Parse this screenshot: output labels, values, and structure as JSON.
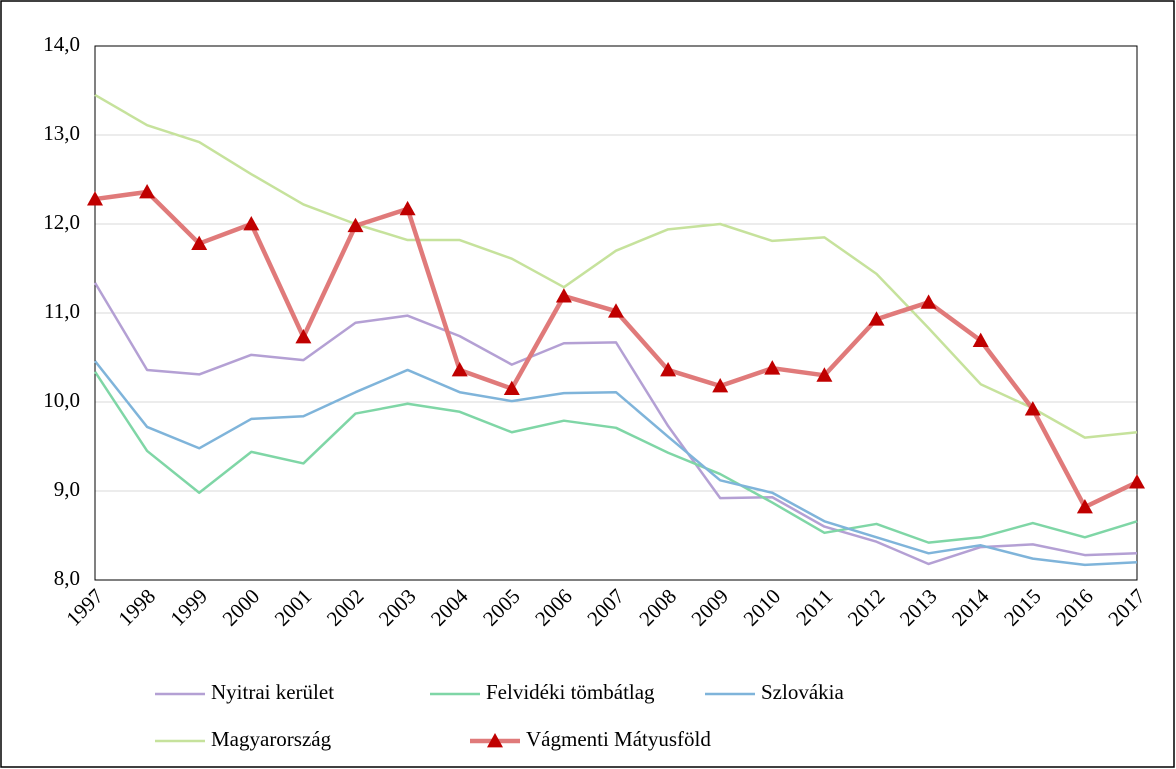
{
  "chart_data": {
    "type": "line",
    "categories": [
      "1997",
      "1998",
      "1999",
      "2000",
      "2001",
      "2002",
      "2003",
      "2004",
      "2005",
      "2006",
      "2007",
      "2008",
      "2009",
      "2010",
      "2011",
      "2012",
      "2013",
      "2014",
      "2015",
      "2016",
      "2017"
    ],
    "series": [
      {
        "name": "Nyitrai kerület",
        "color": "#b4a0d4",
        "values": [
          11.34,
          10.36,
          10.31,
          10.53,
          10.47,
          10.89,
          10.97,
          10.74,
          10.42,
          10.66,
          10.67,
          9.73,
          8.92,
          8.93,
          8.6,
          8.43,
          8.18,
          8.37,
          8.4,
          8.28,
          8.3
        ]
      },
      {
        "name": "Felvidéki tömbátlag",
        "color": "#7fd6a6",
        "values": [
          10.34,
          9.45,
          8.98,
          9.44,
          9.31,
          9.87,
          9.98,
          9.89,
          9.66,
          9.79,
          9.71,
          9.43,
          9.19,
          8.87,
          8.53,
          8.63,
          8.42,
          8.48,
          8.64,
          8.48,
          8.66
        ]
      },
      {
        "name": "Szlovákia",
        "color": "#7fb4da",
        "values": [
          10.46,
          9.72,
          9.48,
          9.81,
          9.84,
          10.11,
          10.36,
          10.11,
          10.01,
          10.1,
          10.11,
          9.61,
          9.12,
          8.98,
          8.66,
          8.48,
          8.3,
          8.39,
          8.24,
          8.17,
          8.2
        ]
      },
      {
        "name": "Magyarország",
        "color": "#c6e29c",
        "values": [
          13.45,
          13.11,
          12.92,
          12.56,
          12.22,
          12.0,
          11.82,
          11.82,
          11.61,
          11.29,
          11.7,
          11.94,
          12.0,
          11.81,
          11.85,
          11.44,
          10.83,
          10.2,
          9.93,
          9.6,
          9.66
        ]
      },
      {
        "name": "Vágmenti Mátyusföld",
        "color": "#e07a7a",
        "marker": "triangle",
        "marker_color": "#c00000",
        "values": [
          12.28,
          12.36,
          11.78,
          12.0,
          10.73,
          11.98,
          12.17,
          10.36,
          10.15,
          11.19,
          11.02,
          10.36,
          10.18,
          10.38,
          10.3,
          10.93,
          11.12,
          10.69,
          9.92,
          8.82,
          9.1
        ]
      }
    ],
    "ylim": [
      8,
      14
    ],
    "yticks": [
      {
        "value": 8,
        "label": "8,0"
      },
      {
        "value": 9,
        "label": "9,0"
      },
      {
        "value": 10,
        "label": "10,0"
      },
      {
        "value": 11,
        "label": "11,0"
      },
      {
        "value": 12,
        "label": "12,0"
      },
      {
        "value": 13,
        "label": "13,0"
      },
      {
        "value": 14,
        "label": "14,0"
      }
    ],
    "grid": true
  }
}
